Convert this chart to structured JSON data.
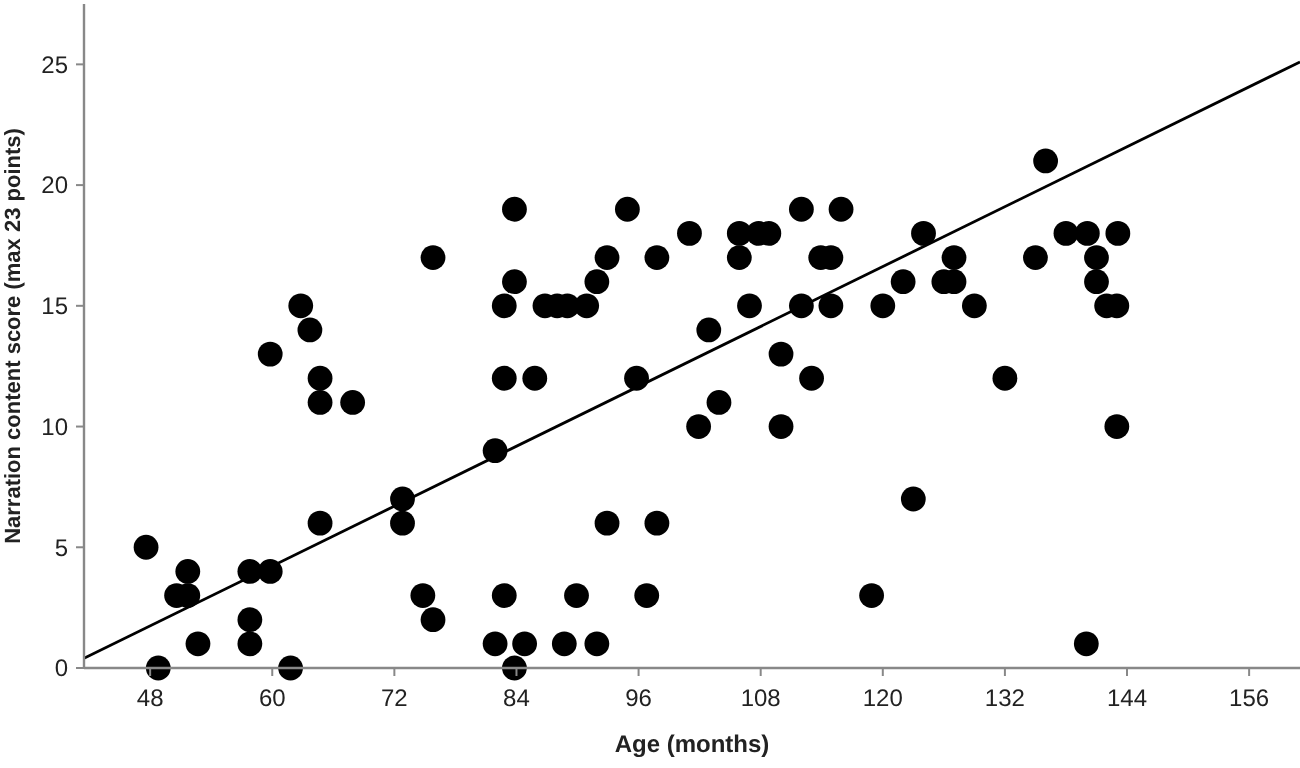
{
  "chart_data": {
    "type": "scatter",
    "xlabel": "Age (months)",
    "ylabel": "Narration content score (max 23 points)",
    "xlim": [
      41.5,
      161
    ],
    "ylim": [
      0,
      27.5
    ],
    "xticks": [
      48,
      60,
      72,
      84,
      96,
      108,
      120,
      132,
      144,
      156
    ],
    "yticks": [
      0,
      5,
      10,
      15,
      20,
      25
    ],
    "grid": false,
    "marker": "circle",
    "series": [
      {
        "color": "#000000",
        "x": [
          47.6,
          48.8,
          50.6,
          51.7,
          51.7,
          52.7,
          57.8,
          59.8,
          57.8,
          57.8,
          61.8,
          59.8,
          62.8,
          63.7,
          64.7,
          64.7,
          67.9,
          64.7,
          72.8,
          72.8,
          74.8,
          75.8,
          75.8,
          83.8,
          94.9,
          112,
          115.9,
          101,
          105.9,
          107.8,
          108.8,
          92.9,
          97.8,
          105.9,
          113.9,
          114.9,
          83.8,
          91.9,
          82.8,
          86.8,
          88,
          89,
          90.9,
          106.9,
          112,
          114.9,
          102.9,
          110,
          82.8,
          85.8,
          95.8,
          113,
          103.9,
          101.9,
          110,
          81.9,
          92.9,
          97.8,
          82.8,
          89.9,
          96.8,
          118.9,
          81.9,
          84.8,
          88.7,
          91.9,
          83.8,
          136,
          124,
          138,
          140.1,
          143.1,
          127,
          135,
          141,
          122,
          126,
          127,
          141,
          120,
          129,
          142,
          143,
          132,
          143,
          123,
          140
        ],
        "values": [
          5,
          0,
          3,
          4,
          3,
          1,
          4,
          4,
          2,
          1,
          0,
          13,
          15,
          14,
          12,
          11,
          11,
          6,
          7,
          6,
          3,
          2,
          17,
          19,
          19,
          19,
          19,
          18,
          18,
          18,
          18,
          17,
          17,
          17,
          17,
          17,
          16,
          16,
          15,
          15,
          15,
          15,
          15,
          15,
          15,
          15,
          14,
          13,
          12,
          12,
          12,
          12,
          11,
          10,
          10,
          9,
          6,
          6,
          3,
          3,
          3,
          3,
          1,
          1,
          1,
          1,
          0,
          21,
          18,
          18,
          18,
          18,
          17,
          17,
          17,
          16,
          16,
          16,
          16,
          15,
          15,
          15,
          15,
          12,
          10,
          7,
          1
        ]
      },
      {
        "type": "line",
        "marker": "none",
        "color": "#000000",
        "x": [
          41.5,
          161
        ],
        "values": [
          0.4,
          25.1
        ]
      }
    ]
  }
}
